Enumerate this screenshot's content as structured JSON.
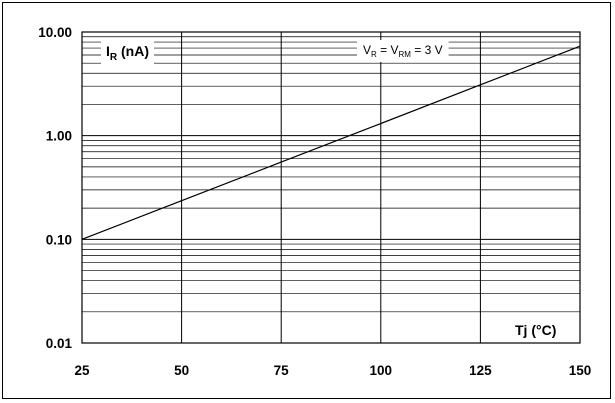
{
  "chart_data": {
    "type": "line",
    "xscale": "linear",
    "yscale": "log",
    "xlim": [
      25,
      150
    ],
    "ylim": [
      0.01,
      10
    ],
    "xticks": [
      25,
      50,
      75,
      100,
      125,
      150
    ],
    "x_tick_labels": [
      "25",
      "50",
      "75",
      "100",
      "125",
      "150"
    ],
    "yticks": [
      0.01,
      0.1,
      1,
      10
    ],
    "y_tick_labels": [
      "0.01",
      "0.10",
      "1.00",
      "10.00"
    ],
    "grid": true,
    "ylabel": {
      "main": "I",
      "sub": "R",
      "unit": " (nA)"
    },
    "xlabel": "Tj (°C)",
    "condition": {
      "v1": "V",
      "v1_sub": "R",
      "eq1": " = V",
      "v2_sub": "RM",
      "eq2": " = 3 V"
    },
    "series": [
      {
        "x": [
          25,
          50,
          75,
          100,
          125,
          150
        ],
        "y": [
          0.1,
          0.236,
          0.556,
          1.31,
          3.09,
          7.3
        ]
      }
    ],
    "line_color": "#000000"
  }
}
